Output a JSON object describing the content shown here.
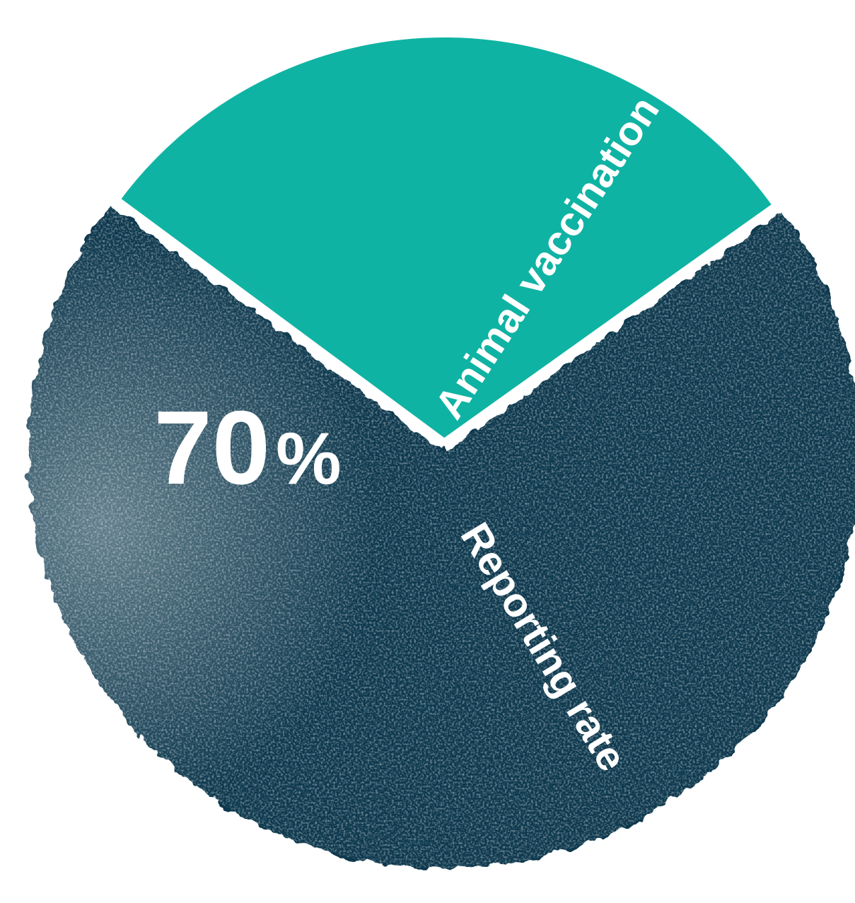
{
  "chart_data": {
    "type": "pie",
    "categories": [
      "",
      ""
    ],
    "values": [
      70,
      30
    ],
    "colors": [
      "#0d374d",
      "#0fb3a3"
    ],
    "value_label": "70",
    "value_unit": "%",
    "annotations": [
      "Animal vaccination",
      "Reporting rate"
    ],
    "legend": "none"
  }
}
